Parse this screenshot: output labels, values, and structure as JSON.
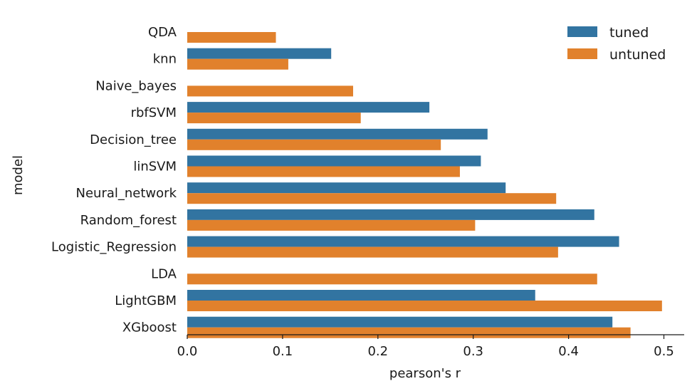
{
  "chart_data": {
    "type": "bar",
    "orientation": "horizontal",
    "categories": [
      "QDA",
      "knn",
      "Naive_bayes",
      "rbfSVM",
      "Decision_tree",
      "linSVM",
      "Neural_network",
      "Random_forest",
      "Logistic_Regression",
      "LDA",
      "LightGBM",
      "XGboost"
    ],
    "series": [
      {
        "name": "tuned",
        "color": "#3274a1",
        "values": [
          null,
          0.151,
          null,
          0.254,
          0.315,
          0.308,
          0.334,
          0.427,
          0.453,
          null,
          0.365,
          0.446
        ]
      },
      {
        "name": "untuned",
        "color": "#e1812c",
        "values": [
          0.093,
          0.106,
          0.174,
          0.182,
          0.266,
          0.286,
          0.387,
          0.302,
          0.389,
          0.43,
          0.498,
          0.465
        ]
      }
    ],
    "xlabel": "pearson's r",
    "ylabel": "model",
    "xlim": [
      0.0,
      0.52
    ],
    "xticks": [
      "0.0",
      "0.1",
      "0.2",
      "0.3",
      "0.4",
      "0.5"
    ],
    "legend_position": "top-right",
    "grid": false
  }
}
